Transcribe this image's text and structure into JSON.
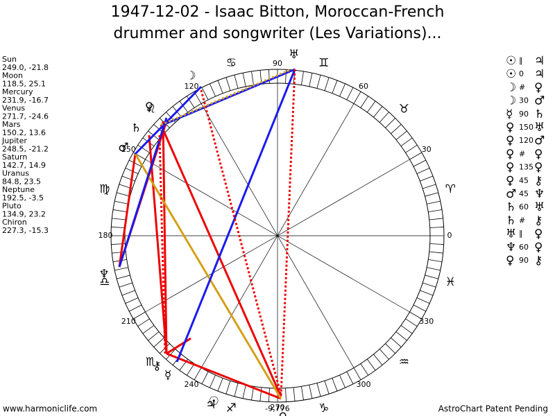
{
  "title_lines": [
    "1947-12-02 - Isaac Bitton, Moroccan-French",
    "drummer and songwriter (Les Variations)..."
  ],
  "planets": [
    {
      "name": "Sun",
      "glyph": "☉",
      "position": "249.0, -21.8",
      "longitude": 249.0
    },
    {
      "name": "Moon",
      "glyph": "☽",
      "position": "118.5, 25.1",
      "longitude": 118.5
    },
    {
      "name": "Mercury",
      "glyph": "☿",
      "position": "231.9, -16.7",
      "longitude": 231.9
    },
    {
      "name": "Venus",
      "glyph": "♀",
      "position": "271.7, -24.6",
      "longitude": 271.7
    },
    {
      "name": "Mars",
      "glyph": "♂",
      "position": "150.2, 13.6",
      "longitude": 150.2
    },
    {
      "name": "Jupiter",
      "glyph": "♃",
      "position": "248.5, -21.2",
      "longitude": 248.5
    },
    {
      "name": "Saturn",
      "glyph": "♄",
      "position": "142.7, 14.9",
      "longitude": 142.7
    },
    {
      "name": "Uranus",
      "glyph": "♅",
      "position": "84.8, 23.5",
      "longitude": 84.8
    },
    {
      "name": "Neptune",
      "glyph": "♆",
      "position": "192.5, -3.5",
      "longitude": 192.5
    },
    {
      "name": "Pluto",
      "glyph": "♀",
      "position": "134.9, 23.2",
      "longitude": 134.9
    },
    {
      "name": "Chiron",
      "glyph": "⚷",
      "position": "227.3, -15.3",
      "longitude": 227.3
    }
  ],
  "aspects": [
    [
      "☉",
      "∥",
      "♃"
    ],
    [
      "☉",
      "0",
      "♃"
    ],
    [
      "☽",
      "#",
      "♀"
    ],
    [
      "☽",
      "30",
      "♂"
    ],
    [
      "☿",
      "90",
      "♄"
    ],
    [
      "♀",
      "150",
      "♅"
    ],
    [
      "♀",
      "120",
      "♂"
    ],
    [
      "♀",
      "#",
      "♀"
    ],
    [
      "♀",
      "135",
      "♀"
    ],
    [
      "♀",
      "45",
      "⚷"
    ],
    [
      "♂",
      "45",
      "♆"
    ],
    [
      "♄",
      "60",
      "♅"
    ],
    [
      "♄",
      "#",
      "⚷"
    ],
    [
      "♅",
      "∥",
      "♀"
    ],
    [
      "♆",
      "60",
      "♀"
    ],
    [
      "♀",
      "90",
      "⚷"
    ]
  ],
  "degree_labels": [
    0,
    30,
    60,
    90,
    120,
    150,
    180,
    210,
    240,
    270,
    300,
    330
  ],
  "signs": [
    "♈",
    "♉",
    "♊",
    "♋",
    "♌",
    "♍",
    "♎",
    "♏",
    "♐",
    "♑",
    "♒",
    "♓"
  ],
  "bottom_label": "-9,776",
  "footer_left": "www.harmoniclife.com",
  "footer_right": "AstroChart Patent Pending"
}
